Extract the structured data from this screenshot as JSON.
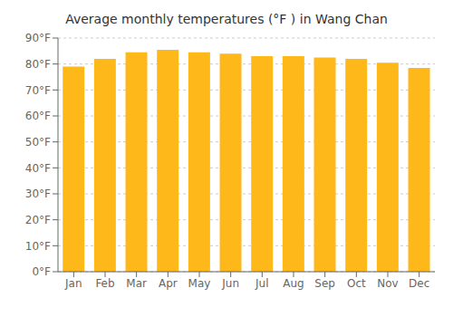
{
  "chart_data": {
    "type": "bar",
    "title": "Average monthly temperatures (°F ) in Wang Chan",
    "categories": [
      "Jan",
      "Feb",
      "Mar",
      "Apr",
      "May",
      "Jun",
      "Jul",
      "Aug",
      "Sep",
      "Oct",
      "Nov",
      "Dec"
    ],
    "values": [
      79,
      82,
      84.5,
      85.5,
      84.5,
      84,
      83,
      83,
      82.5,
      82,
      80.5,
      78.5
    ],
    "color": "#ffb81a",
    "ylim": [
      0,
      90
    ],
    "yticks": [
      {
        "value": 0,
        "label": "0°F"
      },
      {
        "value": 10,
        "label": "10°F"
      },
      {
        "value": 20,
        "label": "20°F"
      },
      {
        "value": 30,
        "label": "30°F"
      },
      {
        "value": 40,
        "label": "40°F"
      },
      {
        "value": 50,
        "label": "50°F"
      },
      {
        "value": 60,
        "label": "60°F"
      },
      {
        "value": 70,
        "label": "70°F"
      },
      {
        "value": 80,
        "label": "80°F"
      },
      {
        "value": 90,
        "label": "90°F"
      }
    ],
    "grid": true
  }
}
